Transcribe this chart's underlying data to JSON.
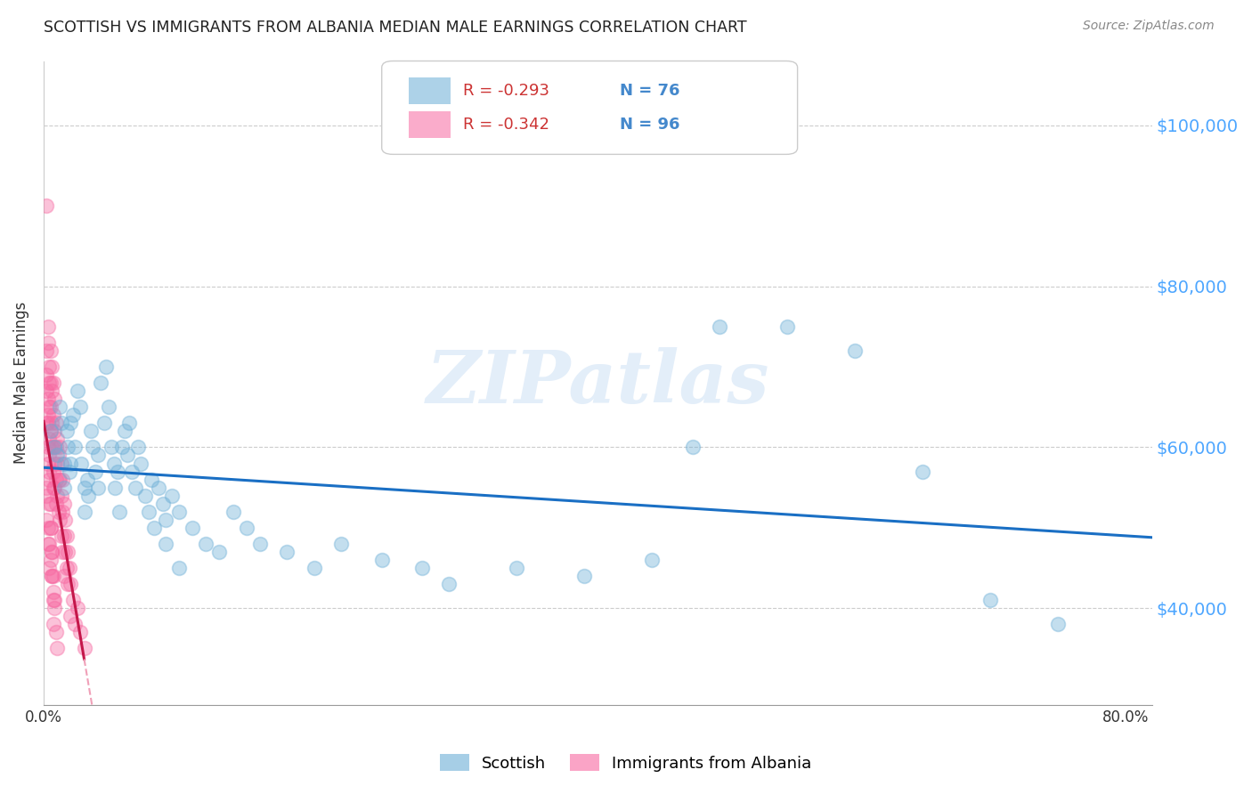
{
  "title": "SCOTTISH VS IMMIGRANTS FROM ALBANIA MEDIAN MALE EARNINGS CORRELATION CHART",
  "source": "Source: ZipAtlas.com",
  "ylabel": "Median Male Earnings",
  "legend_blue_label": "Scottish",
  "legend_pink_label": "Immigrants from Albania",
  "legend_R_blue": "-0.293",
  "legend_N_blue": "76",
  "legend_R_pink": "-0.342",
  "legend_N_pink": "96",
  "blue_color": "#6baed6",
  "pink_color": "#f768a1",
  "trend_blue_color": "#1a6fc4",
  "trend_pink_color": "#c4174a",
  "trend_pink_dashed_color": "#f0a0b8",
  "watermark_text": "ZIPatlas",
  "title_color": "#222222",
  "ytick_color": "#4da6ff",
  "source_color": "#888888",
  "ytick_values": [
    40000,
    60000,
    80000,
    100000
  ],
  "ytick_labels": [
    "$40,000",
    "$60,000",
    "$80,000",
    "$100,000"
  ],
  "xlim": [
    0.0,
    0.82
  ],
  "ylim": [
    28000,
    108000
  ],
  "scatter_blue": [
    [
      0.005,
      62000
    ],
    [
      0.008,
      60000
    ],
    [
      0.01,
      59000
    ],
    [
      0.012,
      65000
    ],
    [
      0.013,
      63000
    ],
    [
      0.015,
      58000
    ],
    [
      0.015,
      55000
    ],
    [
      0.017,
      62000
    ],
    [
      0.018,
      60000
    ],
    [
      0.019,
      57000
    ],
    [
      0.02,
      63000
    ],
    [
      0.02,
      58000
    ],
    [
      0.022,
      64000
    ],
    [
      0.023,
      60000
    ],
    [
      0.025,
      67000
    ],
    [
      0.027,
      65000
    ],
    [
      0.028,
      58000
    ],
    [
      0.03,
      55000
    ],
    [
      0.03,
      52000
    ],
    [
      0.032,
      56000
    ],
    [
      0.033,
      54000
    ],
    [
      0.035,
      62000
    ],
    [
      0.036,
      60000
    ],
    [
      0.038,
      57000
    ],
    [
      0.04,
      55000
    ],
    [
      0.04,
      59000
    ],
    [
      0.042,
      68000
    ],
    [
      0.045,
      63000
    ],
    [
      0.046,
      70000
    ],
    [
      0.048,
      65000
    ],
    [
      0.05,
      60000
    ],
    [
      0.052,
      58000
    ],
    [
      0.053,
      55000
    ],
    [
      0.055,
      57000
    ],
    [
      0.056,
      52000
    ],
    [
      0.058,
      60000
    ],
    [
      0.06,
      62000
    ],
    [
      0.062,
      59000
    ],
    [
      0.063,
      63000
    ],
    [
      0.065,
      57000
    ],
    [
      0.068,
      55000
    ],
    [
      0.07,
      60000
    ],
    [
      0.072,
      58000
    ],
    [
      0.075,
      54000
    ],
    [
      0.078,
      52000
    ],
    [
      0.08,
      56000
    ],
    [
      0.082,
      50000
    ],
    [
      0.085,
      55000
    ],
    [
      0.088,
      53000
    ],
    [
      0.09,
      51000
    ],
    [
      0.09,
      48000
    ],
    [
      0.095,
      54000
    ],
    [
      0.1,
      52000
    ],
    [
      0.1,
      45000
    ],
    [
      0.11,
      50000
    ],
    [
      0.12,
      48000
    ],
    [
      0.13,
      47000
    ],
    [
      0.14,
      52000
    ],
    [
      0.15,
      50000
    ],
    [
      0.16,
      48000
    ],
    [
      0.18,
      47000
    ],
    [
      0.2,
      45000
    ],
    [
      0.22,
      48000
    ],
    [
      0.25,
      46000
    ],
    [
      0.28,
      45000
    ],
    [
      0.3,
      43000
    ],
    [
      0.35,
      45000
    ],
    [
      0.4,
      44000
    ],
    [
      0.45,
      46000
    ],
    [
      0.48,
      60000
    ],
    [
      0.5,
      75000
    ],
    [
      0.55,
      75000
    ],
    [
      0.6,
      72000
    ],
    [
      0.65,
      57000
    ],
    [
      0.7,
      41000
    ],
    [
      0.75,
      38000
    ]
  ],
  "scatter_pink": [
    [
      0.002,
      90000
    ],
    [
      0.003,
      75000
    ],
    [
      0.003,
      73000
    ],
    [
      0.004,
      70000
    ],
    [
      0.004,
      68000
    ],
    [
      0.004,
      65000
    ],
    [
      0.005,
      72000
    ],
    [
      0.005,
      68000
    ],
    [
      0.005,
      65000
    ],
    [
      0.005,
      62000
    ],
    [
      0.006,
      70000
    ],
    [
      0.006,
      67000
    ],
    [
      0.006,
      63000
    ],
    [
      0.006,
      60000
    ],
    [
      0.007,
      68000
    ],
    [
      0.007,
      64000
    ],
    [
      0.007,
      60000
    ],
    [
      0.007,
      57000
    ],
    [
      0.007,
      55000
    ],
    [
      0.008,
      66000
    ],
    [
      0.008,
      62000
    ],
    [
      0.008,
      58000
    ],
    [
      0.008,
      55000
    ],
    [
      0.009,
      63000
    ],
    [
      0.009,
      60000
    ],
    [
      0.009,
      56000
    ],
    [
      0.009,
      53000
    ],
    [
      0.01,
      61000
    ],
    [
      0.01,
      58000
    ],
    [
      0.01,
      54000
    ],
    [
      0.011,
      59000
    ],
    [
      0.011,
      56000
    ],
    [
      0.011,
      52000
    ],
    [
      0.012,
      60000
    ],
    [
      0.012,
      56000
    ],
    [
      0.012,
      51000
    ],
    [
      0.013,
      58000
    ],
    [
      0.013,
      54000
    ],
    [
      0.013,
      49000
    ],
    [
      0.014,
      56000
    ],
    [
      0.014,
      52000
    ],
    [
      0.014,
      47000
    ],
    [
      0.015,
      53000
    ],
    [
      0.015,
      49000
    ],
    [
      0.015,
      44000
    ],
    [
      0.016,
      51000
    ],
    [
      0.016,
      47000
    ],
    [
      0.017,
      49000
    ],
    [
      0.017,
      45000
    ],
    [
      0.018,
      47000
    ],
    [
      0.018,
      43000
    ],
    [
      0.019,
      45000
    ],
    [
      0.02,
      43000
    ],
    [
      0.02,
      39000
    ],
    [
      0.022,
      41000
    ],
    [
      0.023,
      38000
    ],
    [
      0.025,
      40000
    ],
    [
      0.027,
      37000
    ],
    [
      0.03,
      35000
    ],
    [
      0.002,
      55000
    ],
    [
      0.003,
      50000
    ],
    [
      0.004,
      48000
    ],
    [
      0.005,
      46000
    ],
    [
      0.006,
      44000
    ],
    [
      0.007,
      42000
    ],
    [
      0.008,
      40000
    ],
    [
      0.009,
      37000
    ],
    [
      0.01,
      35000
    ],
    [
      0.002,
      63000
    ],
    [
      0.003,
      60000
    ],
    [
      0.004,
      57000
    ],
    [
      0.004,
      53000
    ],
    [
      0.005,
      50000
    ],
    [
      0.006,
      47000
    ],
    [
      0.007,
      44000
    ],
    [
      0.008,
      41000
    ],
    [
      0.002,
      67000
    ],
    [
      0.003,
      64000
    ],
    [
      0.004,
      61000
    ],
    [
      0.003,
      58000
    ],
    [
      0.002,
      54000
    ],
    [
      0.002,
      51000
    ],
    [
      0.003,
      48000
    ],
    [
      0.004,
      45000
    ],
    [
      0.002,
      72000
    ],
    [
      0.002,
      69000
    ],
    [
      0.003,
      66000
    ],
    [
      0.003,
      63000
    ],
    [
      0.004,
      59000
    ],
    [
      0.004,
      56000
    ],
    [
      0.005,
      53000
    ],
    [
      0.005,
      50000
    ],
    [
      0.006,
      47000
    ],
    [
      0.006,
      44000
    ],
    [
      0.007,
      41000
    ],
    [
      0.007,
      38000
    ]
  ]
}
